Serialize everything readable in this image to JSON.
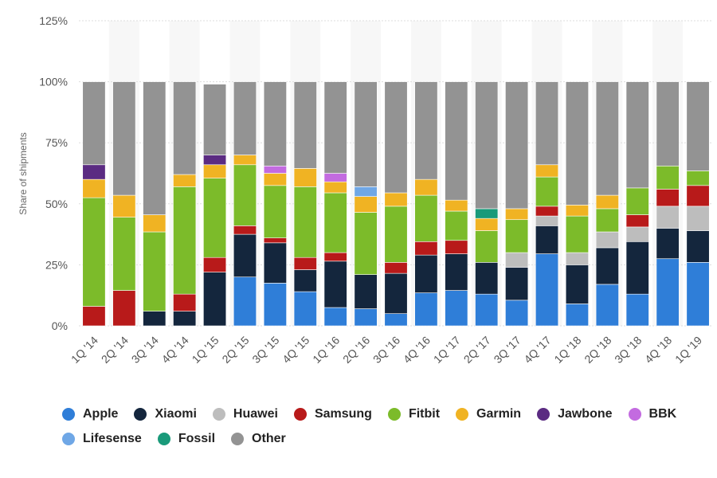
{
  "chart_data": {
    "type": "bar",
    "stacked": true,
    "ylabel": "Share of shipments",
    "ylim": [
      0,
      125
    ],
    "yticks": [
      "0%",
      "25%",
      "50%",
      "75%",
      "100%",
      "125%"
    ],
    "categories": [
      "1Q '14",
      "2Q '14",
      "3Q '14",
      "4Q '14",
      "1Q '15",
      "2Q '15",
      "3Q '15",
      "4Q '15",
      "1Q '16",
      "2Q '16",
      "3Q '16",
      "4Q '16",
      "1Q '17",
      "2Q '17",
      "3Q '17",
      "4Q '17",
      "1Q '18",
      "2Q '18",
      "3Q '18",
      "4Q '18",
      "1Q '19"
    ],
    "legend_position": "bottom",
    "series": [
      {
        "name": "Apple",
        "color": "#2f7ed8",
        "values": [
          0,
          0,
          0,
          0,
          0,
          20,
          17.5,
          14,
          7.5,
          7,
          5,
          13.5,
          14.5,
          13,
          10.5,
          29.5,
          9,
          17,
          13,
          27.5,
          26
        ]
      },
      {
        "name": "Xiaomi",
        "color": "#14263d",
        "values": [
          0,
          0,
          6,
          6,
          22,
          17.5,
          16.5,
          9,
          19,
          14,
          16.5,
          15.5,
          15,
          13,
          13.5,
          11.5,
          16,
          15,
          21.5,
          12.5,
          13
        ]
      },
      {
        "name": "Huawei",
        "color": "#bdbdbd",
        "values": [
          0,
          0,
          0,
          0,
          0,
          0,
          0,
          0,
          0,
          0,
          0,
          0,
          0,
          0,
          6,
          4,
          5,
          6.5,
          6,
          9,
          10
        ]
      },
      {
        "name": "Samsung",
        "color": "#b81a1a",
        "values": [
          8,
          14.5,
          0,
          7,
          6,
          3.5,
          2,
          5,
          3.5,
          0,
          4.5,
          5.5,
          5.5,
          0,
          0,
          4,
          0,
          0,
          5,
          7,
          8.5
        ]
      },
      {
        "name": "Fitbit",
        "color": "#7cbb2a",
        "values": [
          44.5,
          30,
          32.5,
          44,
          32.5,
          25,
          21.5,
          29,
          24.5,
          25.5,
          23,
          19,
          12,
          13,
          13.5,
          12,
          15,
          9.5,
          11,
          9.5,
          6
        ]
      },
      {
        "name": "Garmin",
        "color": "#f0b323",
        "values": [
          7.5,
          9,
          7,
          5,
          5.5,
          4,
          5,
          7.5,
          4.5,
          6.5,
          5.5,
          6.5,
          4.5,
          5,
          4.5,
          5,
          4.5,
          5.5,
          0,
          0,
          0
        ]
      },
      {
        "name": "Jawbone",
        "color": "#5b2b82",
        "values": [
          6,
          0,
          0,
          0,
          4,
          0,
          0,
          0,
          0,
          0,
          0,
          0,
          0,
          0,
          0,
          0,
          0,
          0,
          0,
          0,
          0
        ]
      },
      {
        "name": "BBK",
        "color": "#c36be0",
        "values": [
          0,
          0,
          0,
          0,
          0,
          0,
          3,
          0,
          3.5,
          0,
          0,
          0,
          0,
          0,
          0,
          0,
          0,
          0,
          0,
          0,
          0
        ]
      },
      {
        "name": "Lifesense",
        "color": "#6fa7e6",
        "values": [
          0,
          0,
          0,
          0,
          0,
          0,
          0,
          0,
          0,
          4,
          0,
          0,
          0,
          0,
          0,
          0,
          0,
          0,
          0,
          0,
          0
        ]
      },
      {
        "name": "Fossil",
        "color": "#1a9a7a",
        "values": [
          0,
          0,
          0,
          0,
          0,
          0,
          0,
          0,
          0,
          0,
          0,
          0,
          0,
          4,
          0,
          0,
          0,
          0,
          0,
          0,
          0
        ]
      },
      {
        "name": "Other",
        "color": "#939393",
        "values": [
          34,
          46.5,
          54.5,
          38,
          29,
          30,
          34.5,
          35.5,
          37.5,
          43,
          45.5,
          40,
          48.5,
          52,
          52,
          34,
          50.5,
          46.5,
          43.5,
          34.5,
          36.5
        ]
      }
    ]
  },
  "legend": {
    "rows": [
      [
        {
          "label": "Apple",
          "color": "#2f7ed8"
        },
        {
          "label": "Xiaomi",
          "color": "#14263d"
        },
        {
          "label": "Huawei",
          "color": "#bdbdbd"
        },
        {
          "label": "Samsung",
          "color": "#b81a1a"
        },
        {
          "label": "Fitbit",
          "color": "#7cbb2a"
        },
        {
          "label": "Garmin",
          "color": "#f0b323"
        },
        {
          "label": "Jawbone",
          "color": "#5b2b82"
        },
        {
          "label": "BBK",
          "color": "#c36be0"
        }
      ],
      [
        {
          "label": "Lifesense",
          "color": "#6fa7e6"
        },
        {
          "label": "Fossil",
          "color": "#1a9a7a"
        },
        {
          "label": "Other",
          "color": "#939393"
        }
      ]
    ]
  }
}
